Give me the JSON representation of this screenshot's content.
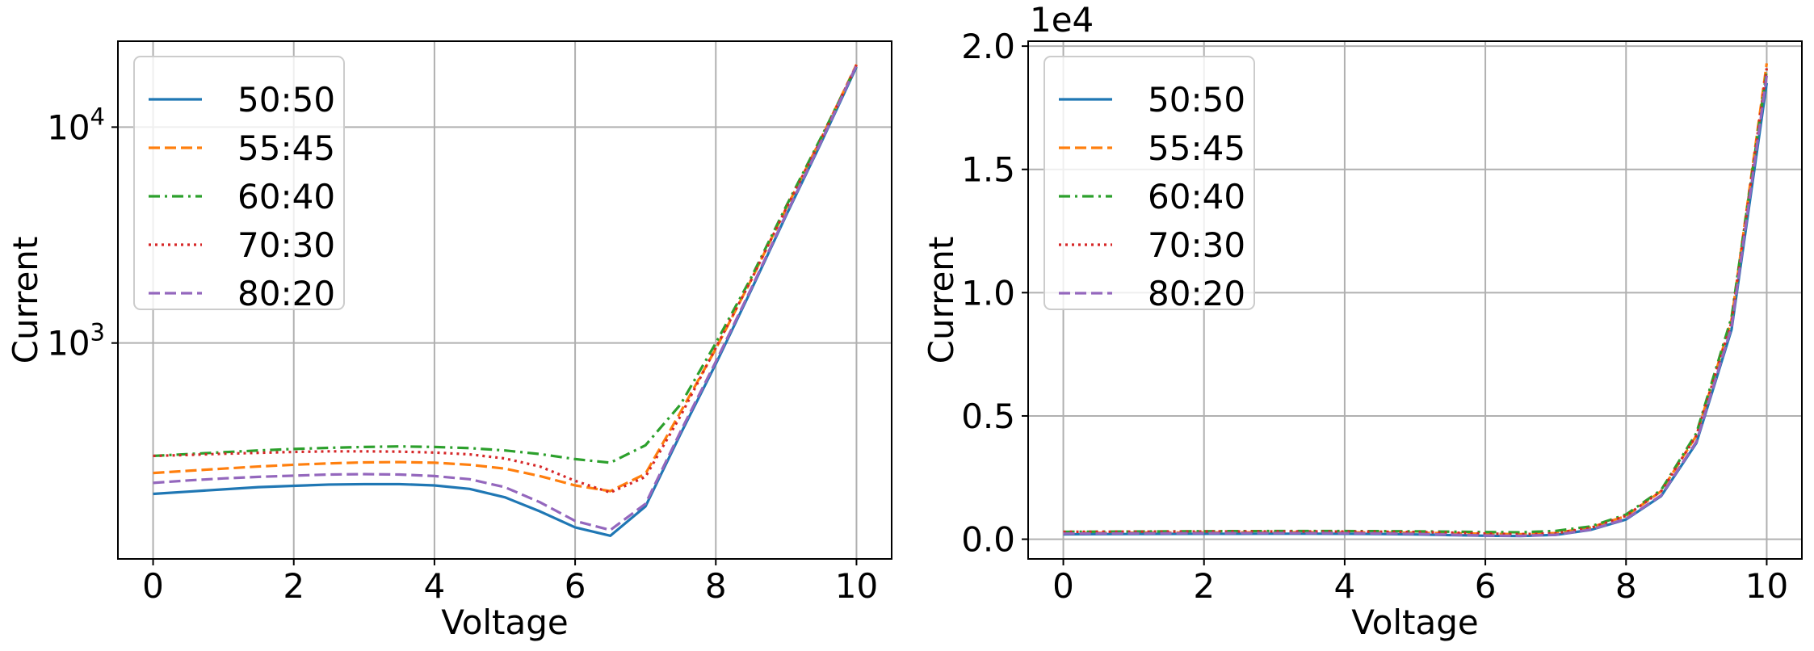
{
  "chart_data": [
    {
      "type": "line",
      "xlabel": "Voltage",
      "ylabel": "Current",
      "yscale": "log",
      "xlim": [
        -0.5,
        10.5
      ],
      "ylim": [
        100,
        25000
      ],
      "x_ticks": [
        0,
        2,
        4,
        6,
        8,
        10
      ],
      "y_ticks": [
        {
          "base": "10",
          "exp": "3",
          "value": 1000
        },
        {
          "base": "10",
          "exp": "4",
          "value": 10000
        }
      ],
      "grid": true,
      "legend_position": "upper left",
      "x": [
        0,
        0.5,
        1,
        1.5,
        2,
        2.5,
        3,
        3.5,
        4,
        4.5,
        5,
        5.5,
        6,
        6.5,
        7,
        7.5,
        8,
        8.5,
        9,
        9.5,
        10
      ],
      "series": [
        {
          "name": "50:50",
          "color": "#1f77b4",
          "dash": "solid",
          "values": [
            200,
            205,
            210,
            215,
            218,
            221,
            222,
            222,
            219,
            211,
            193,
            166,
            140,
            128,
            175,
            380,
            800,
            1750,
            3900,
            8500,
            19000
          ]
        },
        {
          "name": "55:45",
          "color": "#ff7f0e",
          "dash": "dashed",
          "values": [
            250,
            256,
            262,
            268,
            273,
            277,
            280,
            281,
            279,
            273,
            262,
            242,
            219,
            206,
            248,
            480,
            940,
            1950,
            4200,
            8900,
            19500
          ]
        },
        {
          "name": "60:40",
          "color": "#2ca02c",
          "dash": "dashdot",
          "values": [
            300,
            306,
            312,
            318,
            323,
            327,
            330,
            332,
            330,
            326,
            318,
            306,
            290,
            279,
            336,
            520,
            1000,
            2000,
            4300,
            9000,
            19200
          ]
        },
        {
          "name": "70:30",
          "color": "#d62728",
          "dash": "dotted",
          "values": [
            300,
            303,
            307,
            310,
            313,
            315,
            315,
            314,
            311,
            305,
            292,
            268,
            230,
            203,
            240,
            460,
            950,
            1950,
            4200,
            8800,
            19400
          ]
        },
        {
          "name": "80:20",
          "color": "#9467bd",
          "dash": "dashed",
          "values": [
            225,
            231,
            236,
            240,
            243,
            246,
            247,
            246,
            242,
            234,
            215,
            183,
            150,
            136,
            180,
            390,
            820,
            1780,
            3950,
            8600,
            19300
          ]
        }
      ]
    },
    {
      "type": "line",
      "xlabel": "Voltage",
      "ylabel": "Current",
      "yscale": "linear",
      "offset_label": "1e4",
      "xlim": [
        -0.5,
        10.5
      ],
      "ylim": [
        -0.08,
        2.02
      ],
      "x_ticks": [
        0,
        2,
        4,
        6,
        8,
        10
      ],
      "y_ticks": [
        "0.0",
        "0.5",
        "1.0",
        "1.5",
        "2.0"
      ],
      "grid": true,
      "legend_position": "upper left",
      "x": [
        0,
        0.5,
        1,
        1.5,
        2,
        2.5,
        3,
        3.5,
        4,
        4.5,
        5,
        5.5,
        6,
        6.5,
        7,
        7.5,
        8,
        8.5,
        9,
        9.5,
        10
      ],
      "series": [
        {
          "name": "50:50",
          "color": "#1f77b4",
          "dash": "solid",
          "values": [
            0.02,
            0.0205,
            0.021,
            0.0215,
            0.0218,
            0.0221,
            0.0222,
            0.0222,
            0.0219,
            0.0211,
            0.0193,
            0.0166,
            0.014,
            0.0128,
            0.0175,
            0.038,
            0.08,
            0.175,
            0.39,
            0.85,
            1.85
          ]
        },
        {
          "name": "55:45",
          "color": "#ff7f0e",
          "dash": "dashed",
          "values": [
            0.025,
            0.0256,
            0.0262,
            0.0268,
            0.0273,
            0.0277,
            0.028,
            0.0281,
            0.0279,
            0.0273,
            0.0262,
            0.0242,
            0.0219,
            0.0206,
            0.0248,
            0.048,
            0.094,
            0.195,
            0.42,
            0.89,
            1.93
          ]
        },
        {
          "name": "60:40",
          "color": "#2ca02c",
          "dash": "dashdot",
          "values": [
            0.03,
            0.0306,
            0.0312,
            0.0318,
            0.0323,
            0.0327,
            0.033,
            0.0332,
            0.033,
            0.0326,
            0.0318,
            0.0306,
            0.029,
            0.0279,
            0.0336,
            0.052,
            0.1,
            0.2,
            0.43,
            0.9,
            1.9
          ]
        },
        {
          "name": "70:30",
          "color": "#d62728",
          "dash": "dotted",
          "values": [
            0.03,
            0.0303,
            0.0307,
            0.031,
            0.0313,
            0.0315,
            0.0315,
            0.0314,
            0.0311,
            0.0305,
            0.0292,
            0.0268,
            0.023,
            0.0203,
            0.024,
            0.046,
            0.095,
            0.195,
            0.42,
            0.88,
            1.91
          ]
        },
        {
          "name": "80:20",
          "color": "#9467bd",
          "dash": "dashed",
          "values": [
            0.0225,
            0.0231,
            0.0236,
            0.024,
            0.0243,
            0.0246,
            0.0247,
            0.0246,
            0.0242,
            0.0234,
            0.0215,
            0.0183,
            0.015,
            0.0136,
            0.018,
            0.039,
            0.082,
            0.178,
            0.395,
            0.86,
            1.88
          ]
        }
      ]
    }
  ]
}
